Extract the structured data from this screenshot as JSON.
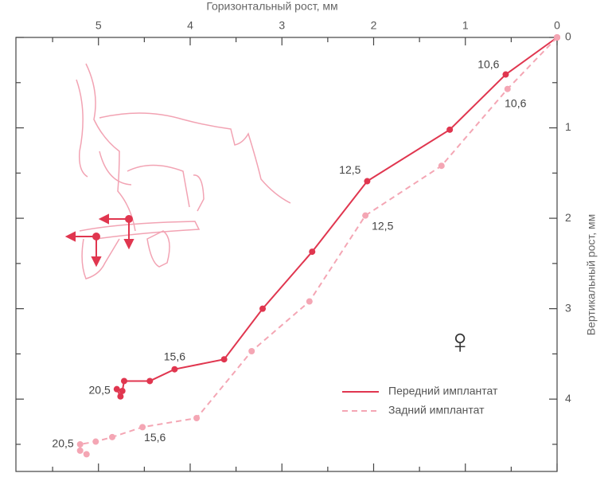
{
  "chart_data": {
    "type": "line",
    "x_label": "Горизонтальный рост, мм",
    "y_label": "Вертикальный рост, мм",
    "xlim": [
      0,
      5.9
    ],
    "ylim": [
      0,
      4.8
    ],
    "x_reversed": true,
    "y_reversed": true,
    "xticks": [
      0,
      1,
      2,
      3,
      4,
      5
    ],
    "yticks": [
      0,
      1,
      2,
      3,
      4
    ],
    "xminor": [
      0.5,
      1.5,
      2.5,
      3.5,
      4.5,
      5.5
    ],
    "yminor": [
      0.5,
      1.5,
      2.5,
      3.5,
      4.5
    ],
    "legend": "lower right",
    "symbol": "♀",
    "series": [
      {
        "name": "Передний имплантат",
        "color": "#e0364f",
        "dashed": false,
        "x": [
          0,
          0.56,
          1.17,
          2.07,
          2.67,
          3.21,
          3.63,
          4.17,
          4.44,
          4.72,
          4.74,
          4.76,
          4.8
        ],
        "values": [
          0,
          0.41,
          1.02,
          1.59,
          2.37,
          3.0,
          3.56,
          3.67,
          3.8,
          3.8,
          3.91,
          3.97,
          3.89
        ],
        "labels": [
          null,
          "10,6",
          null,
          "12,5",
          null,
          null,
          null,
          "15,6",
          null,
          null,
          null,
          null,
          "20,5"
        ]
      },
      {
        "name": "Задний имплантат",
        "color": "#f4a6b4",
        "dashed": true,
        "x": [
          0,
          0.54,
          1.26,
          2.09,
          2.7,
          3.33,
          3.93,
          4.52,
          4.85,
          5.03,
          5.2,
          5.2,
          5.13
        ],
        "values": [
          0,
          0.57,
          1.42,
          1.97,
          2.92,
          3.47,
          4.21,
          4.31,
          4.42,
          4.47,
          4.5,
          4.57,
          4.61
        ],
        "labels": [
          null,
          "10,6",
          null,
          "12,5",
          null,
          null,
          null,
          "15,6",
          null,
          null,
          "20,5",
          null,
          null
        ]
      }
    ]
  }
}
